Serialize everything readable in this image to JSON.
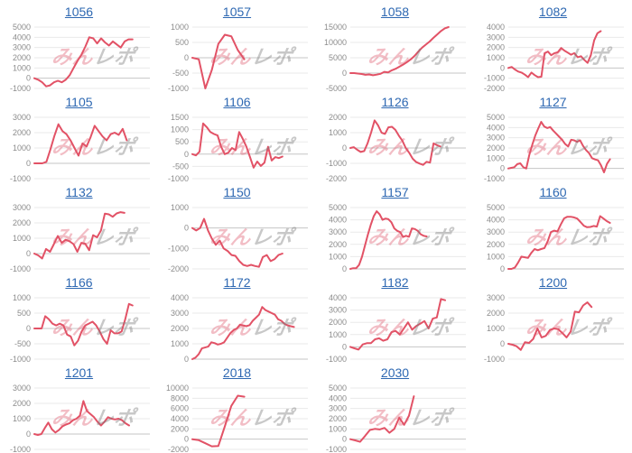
{
  "page": {
    "watermark_part1": "みん",
    "watermark_part2": "レポ"
  },
  "colors": {
    "line": "#e25266",
    "link": "#2e68b2",
    "grid": "#eaeaea",
    "zero_line": "#c6c6c6",
    "tick_text": "#8c8c8c"
  },
  "chart_data": [
    {
      "type": "line",
      "title": "1056",
      "ylim": [
        -1000,
        5000
      ],
      "yticks": [
        5000,
        4000,
        3000,
        2000,
        1000,
        0,
        -1000
      ],
      "span": 0.85,
      "values": [
        0,
        -150,
        -400,
        -800,
        -700,
        -400,
        -250,
        -400,
        -150,
        300,
        1000,
        1700,
        2300,
        3100,
        4000,
        3900,
        3400,
        3900,
        3500,
        3200,
        3600,
        3300,
        3000,
        3600,
        3800,
        3800
      ]
    },
    {
      "type": "line",
      "title": "1057",
      "ylim": [
        -1000,
        1000
      ],
      "yticks": [
        1000,
        500,
        0,
        -500,
        -1000
      ],
      "span": 0.45,
      "values": [
        0,
        -50,
        -1000,
        -400,
        450,
        750,
        700,
        250,
        -50
      ]
    },
    {
      "type": "line",
      "title": "1058",
      "ylim": [
        -5000,
        15000
      ],
      "yticks": [
        15000,
        10000,
        5000,
        0,
        -5000
      ],
      "span": 0.85,
      "values": [
        0,
        0,
        -150,
        -300,
        -550,
        -450,
        -700,
        -500,
        -250,
        400,
        250,
        900,
        1400,
        2100,
        2800,
        3600,
        4500,
        5600,
        7000,
        8300,
        9300,
        10300,
        11500,
        12600,
        13700,
        14600,
        15000
      ]
    },
    {
      "type": "line",
      "title": "1082",
      "ylim": [
        -2000,
        4000
      ],
      "yticks": [
        4000,
        3000,
        2000,
        1000,
        0,
        -1000,
        -2000
      ],
      "span": 0.8,
      "values": [
        0,
        100,
        -150,
        -350,
        -450,
        -650,
        -900,
        -450,
        -700,
        -900,
        -850,
        1450,
        1600,
        1250,
        1450,
        1550,
        1950,
        1700,
        1500,
        1300,
        1450,
        1050,
        1150,
        800,
        500,
        1250,
        2700,
        3400,
        3600
      ]
    },
    {
      "type": "line",
      "title": "1105",
      "ylim": [
        -1000,
        3000
      ],
      "yticks": [
        3000,
        2000,
        1000,
        0,
        -1000
      ],
      "span": 0.8,
      "values": [
        0,
        0,
        0,
        100,
        900,
        1800,
        2550,
        2100,
        1900,
        1500,
        1000,
        500,
        1300,
        1100,
        1700,
        2450,
        2100,
        1750,
        1500,
        1900,
        2000,
        1850,
        2250,
        1500
      ]
    },
    {
      "type": "line",
      "title": "1106",
      "ylim": [
        -1000,
        1500
      ],
      "yticks": [
        1500,
        1000,
        500,
        0,
        -500,
        -1000
      ],
      "span": 0.78,
      "values": [
        0,
        -50,
        100,
        1250,
        1100,
        900,
        820,
        760,
        300,
        0,
        60,
        250,
        160,
        900,
        620,
        300,
        -120,
        -550,
        -300,
        -480,
        -350,
        300,
        -260,
        -120,
        -160,
        -100
      ]
    },
    {
      "type": "line",
      "title": "1126",
      "ylim": [
        -2000,
        2000
      ],
      "yticks": [
        2000,
        1000,
        0,
        -1000,
        -2000
      ],
      "span": 0.78,
      "values": [
        0,
        50,
        -120,
        -260,
        -200,
        320,
        1000,
        1800,
        1480,
        1000,
        920,
        1350,
        1380,
        1180,
        800,
        480,
        0,
        -320,
        -700,
        -920,
        -1020,
        -1100,
        -900,
        -950,
        300,
        180,
        100
      ]
    },
    {
      "type": "line",
      "title": "1127",
      "ylim": [
        -1000,
        5000
      ],
      "yticks": [
        5000,
        4000,
        3000,
        2000,
        1000,
        0,
        -1000
      ],
      "span": 0.88,
      "values": [
        0,
        60,
        120,
        420,
        500,
        120,
        0,
        1300,
        2300,
        3200,
        3900,
        4550,
        4100,
        3950,
        4050,
        3700,
        3400,
        3100,
        2800,
        2400,
        2150,
        2800,
        2750,
        2600,
        2750,
        2200,
        1800,
        1500,
        1000,
        880,
        800,
        300,
        -380,
        450,
        900
      ]
    },
    {
      "type": "line",
      "title": "1132",
      "ylim": [
        -1000,
        3000
      ],
      "yticks": [
        3000,
        2000,
        1000,
        0,
        -1000
      ],
      "span": 0.78,
      "values": [
        0,
        -120,
        -320,
        300,
        120,
        620,
        1150,
        700,
        900,
        800,
        620,
        120,
        700,
        640,
        220,
        1200,
        1060,
        1500,
        2600,
        2560,
        2400,
        2620,
        2700,
        2650
      ]
    },
    {
      "type": "line",
      "title": "1150",
      "ylim": [
        -2000,
        1000
      ],
      "yticks": [
        1000,
        0,
        -1000,
        -2000
      ],
      "span": 0.78,
      "values": [
        0,
        -120,
        0,
        450,
        -120,
        -520,
        -820,
        -620,
        -1000,
        -1120,
        -1320,
        -1360,
        -1620,
        -1800,
        -1860,
        -1800,
        -1860,
        -1900,
        -1420,
        -1320,
        -1620,
        -1520,
        -1320,
        -1250
      ]
    },
    {
      "type": "line",
      "title": "1157",
      "ylim": [
        0,
        5000
      ],
      "yticks": [
        5000,
        4000,
        3000,
        2000,
        1000,
        0
      ],
      "span": 0.66,
      "values": [
        0,
        60,
        60,
        320,
        1000,
        1900,
        2800,
        3600,
        4300,
        4700,
        4450,
        4000,
        4100,
        4050,
        3800,
        3300,
        3100,
        3000,
        2600,
        2700,
        2620,
        3300,
        3250,
        3100,
        2820,
        2700,
        2650
      ]
    },
    {
      "type": "line",
      "title": "1160",
      "ylim": [
        0,
        5000
      ],
      "yticks": [
        5000,
        4000,
        3000,
        2000,
        1000,
        0
      ],
      "span": 0.88,
      "values": [
        0,
        0,
        120,
        520,
        1000,
        950,
        900,
        1300,
        1620,
        1520,
        1620,
        1700,
        2250,
        3000,
        3120,
        3050,
        3620,
        4120,
        4250,
        4250,
        4200,
        4100,
        3820,
        3520,
        3400,
        3420,
        3500,
        3450,
        4300,
        4100,
        3900,
        3750
      ]
    },
    {
      "type": "line",
      "title": "1166",
      "ylim": [
        -1000,
        1000
      ],
      "yticks": [
        1000,
        500,
        0,
        -500,
        -1000
      ],
      "span": 0.85,
      "values": [
        0,
        0,
        0,
        400,
        300,
        160,
        100,
        160,
        100,
        -200,
        -260,
        -550,
        -400,
        -100,
        100,
        160,
        220,
        100,
        -100,
        -350,
        -500,
        -60,
        -160,
        -160,
        -100,
        300,
        800,
        750
      ]
    },
    {
      "type": "line",
      "title": "1172",
      "ylim": [
        0,
        4000
      ],
      "yticks": [
        4000,
        3000,
        2000,
        1000,
        0
      ],
      "span": 0.88,
      "values": [
        0,
        100,
        320,
        700,
        760,
        820,
        1100,
        1050,
        950,
        1000,
        1100,
        1400,
        1700,
        1900,
        2000,
        2250,
        2200,
        2150,
        2220,
        2500,
        2700,
        2900,
        3400,
        3200,
        3100,
        3000,
        2900,
        2600,
        2500,
        2300,
        2200,
        2150,
        2100
      ]
    },
    {
      "type": "line",
      "title": "1182",
      "ylim": [
        -1000,
        4000
      ],
      "yticks": [
        4000,
        3000,
        2000,
        1000,
        0,
        -1000
      ],
      "span": 0.82,
      "values": [
        0,
        -120,
        -220,
        200,
        300,
        300,
        620,
        700,
        500,
        620,
        1200,
        1300,
        1000,
        1500,
        2000,
        1400,
        1700,
        1900,
        2100,
        1500,
        2300,
        2400,
        3900,
        3800
      ]
    },
    {
      "type": "line",
      "title": "1200",
      "ylim": [
        -1000,
        3000
      ],
      "yticks": [
        3000,
        2000,
        1000,
        0,
        -1000
      ],
      "span": 0.72,
      "values": [
        0,
        -60,
        -160,
        -400,
        100,
        60,
        320,
        1000,
        420,
        520,
        900,
        1000,
        950,
        700,
        420,
        800,
        2100,
        2050,
        2500,
        2700,
        2400
      ]
    },
    {
      "type": "line",
      "title": "1201",
      "ylim": [
        -1000,
        3000
      ],
      "yticks": [
        3000,
        2000,
        1000,
        0,
        -1000
      ],
      "span": 0.82,
      "values": [
        0,
        -60,
        0,
        400,
        750,
        320,
        100,
        260,
        500,
        620,
        700,
        900,
        1000,
        1200,
        2150,
        1500,
        1300,
        1100,
        800,
        560,
        800,
        1100,
        1000,
        950,
        1000,
        900,
        700,
        560
      ]
    },
    {
      "type": "line",
      "title": "2018",
      "ylim": [
        -2000,
        10000
      ],
      "yticks": [
        10000,
        8000,
        6000,
        4000,
        2000,
        0,
        -2000
      ],
      "span": 0.45,
      "values": [
        0,
        -200,
        -800,
        -1400,
        -1350,
        2500,
        6500,
        8500,
        8300
      ]
    },
    {
      "type": "line",
      "title": "2030",
      "ylim": [
        -1000,
        5000
      ],
      "yticks": [
        5000,
        4000,
        3000,
        2000,
        1000,
        0,
        -1000
      ],
      "span": 0.55,
      "values": [
        0,
        -120,
        -260,
        300,
        900,
        1000,
        950,
        1100,
        620,
        1000,
        2100,
        1400,
        2300,
        4200
      ]
    }
  ]
}
